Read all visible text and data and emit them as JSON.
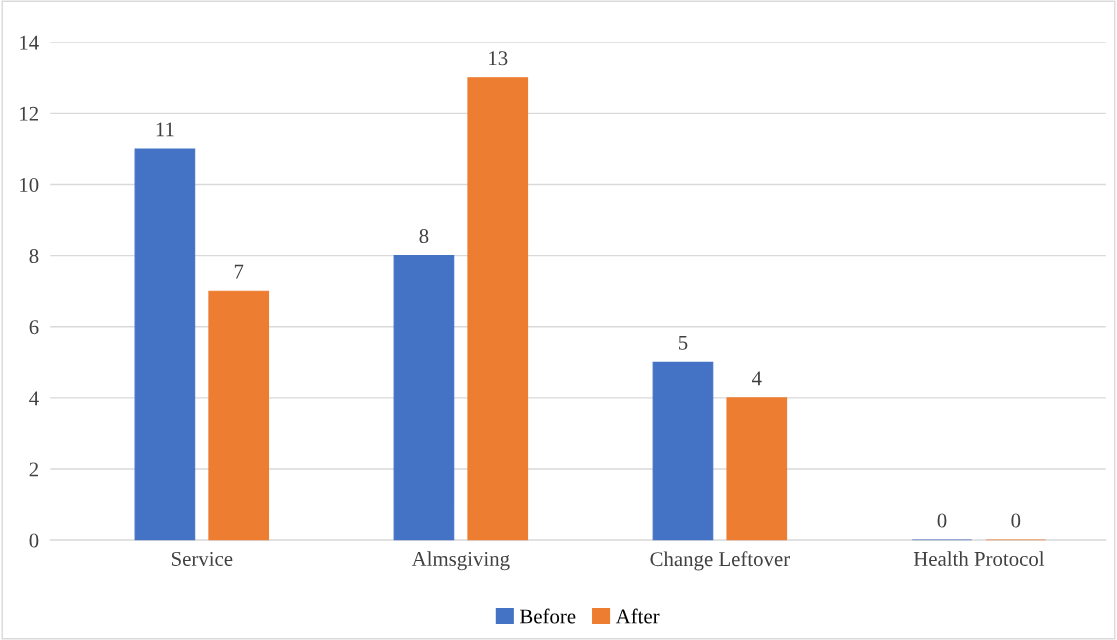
{
  "chart_data": {
    "type": "bar",
    "categories": [
      "Service",
      "Almsgiving",
      "Change Leftover",
      "Health Protocol"
    ],
    "series": [
      {
        "name": "Before",
        "color": "#4472c4",
        "values": [
          11,
          8,
          5,
          0
        ]
      },
      {
        "name": "After",
        "color": "#ed7d31",
        "values": [
          7,
          13,
          4,
          0
        ]
      }
    ],
    "ylim": [
      0,
      14
    ],
    "yticks": [
      0,
      2,
      4,
      6,
      8,
      10,
      12,
      14
    ],
    "grid": "y",
    "legend": "bottom",
    "data_labels": true
  }
}
